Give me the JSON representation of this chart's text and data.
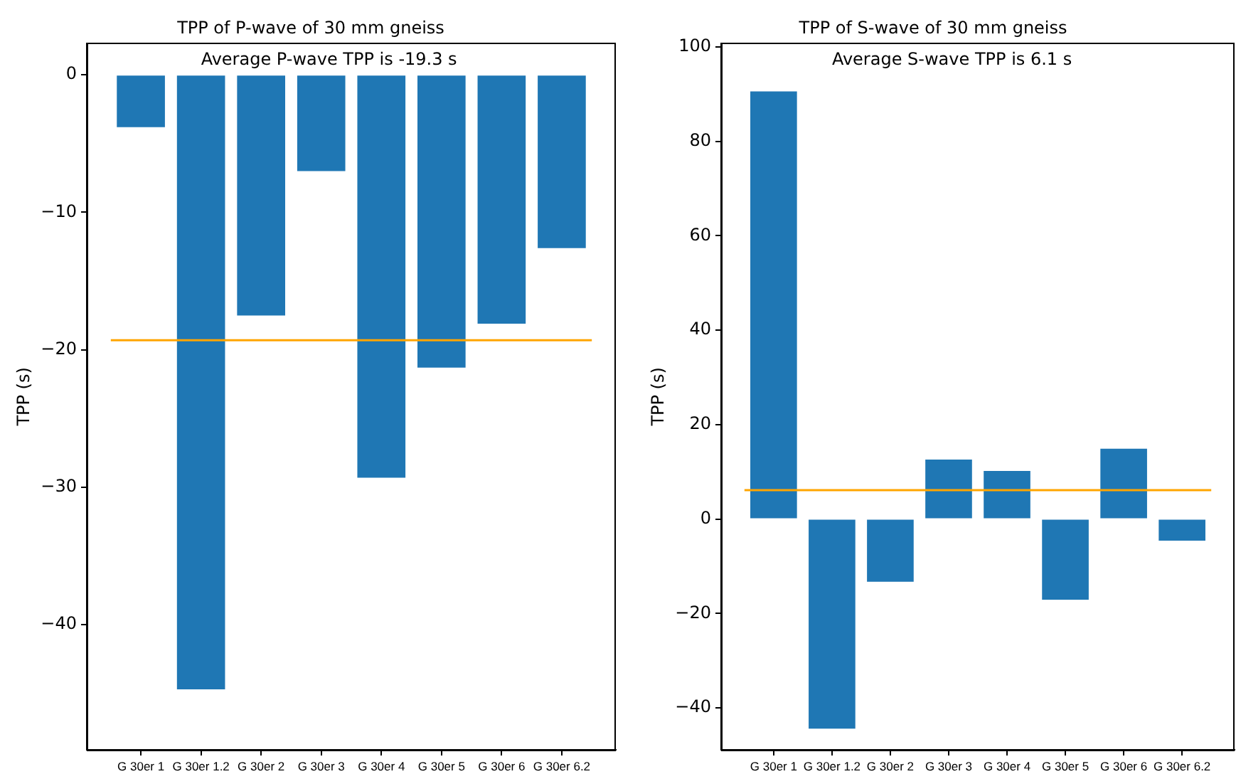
{
  "chart_data": [
    {
      "type": "bar",
      "title": "TPP of P-wave of 30 mm gneiss",
      "ylabel": "TPP (s)",
      "categories": [
        "G 30er 1",
        "G 30er 1.2",
        "G 30er 2",
        "G 30er 3",
        "G 30er 4",
        "G 30er 5",
        "G 30er 6",
        "G 30er 6.2"
      ],
      "values": [
        -3.8,
        -44.7,
        -17.5,
        -7.0,
        -29.3,
        -21.3,
        -18.1,
        -12.6
      ],
      "color": "#1f77b4",
      "ylim": [
        -49.1,
        2.3
      ],
      "yticks": [
        {
          "value": -40,
          "label": "−40"
        },
        {
          "value": -30,
          "label": "−30"
        },
        {
          "value": -20,
          "label": "−20"
        },
        {
          "value": -10,
          "label": "−10"
        },
        0
      ],
      "ref_lines": [
        {
          "axis": "y",
          "value": -19.3,
          "color": "#ffa500"
        }
      ],
      "annotations": [
        "Average P-wave TPP is -19.3 s"
      ]
    },
    {
      "type": "bar",
      "title": "TPP of S-wave of 30 mm gneiss",
      "ylabel": "TPP (s)",
      "categories": [
        "G 30er 1",
        "G 30er 1.2",
        "G 30er 2",
        "G 30er 3",
        "G 30er 4",
        "G 30er 5",
        "G 30er 6",
        "G 30er 6.2"
      ],
      "values": [
        90.6,
        -44.4,
        -13.3,
        12.6,
        10.2,
        -17.1,
        14.9,
        -4.6
      ],
      "color": "#1f77b4",
      "ylim": [
        -48.9,
        100.8
      ],
      "yticks": [
        {
          "value": -40,
          "label": "−40"
        },
        {
          "value": -20,
          "label": "−20"
        },
        0,
        20,
        40,
        60,
        80,
        100
      ],
      "ref_lines": [
        {
          "axis": "y",
          "value": 6.1,
          "color": "#ffa500"
        }
      ],
      "annotations": [
        "Average S-wave TPP is 6.1 s"
      ]
    }
  ]
}
